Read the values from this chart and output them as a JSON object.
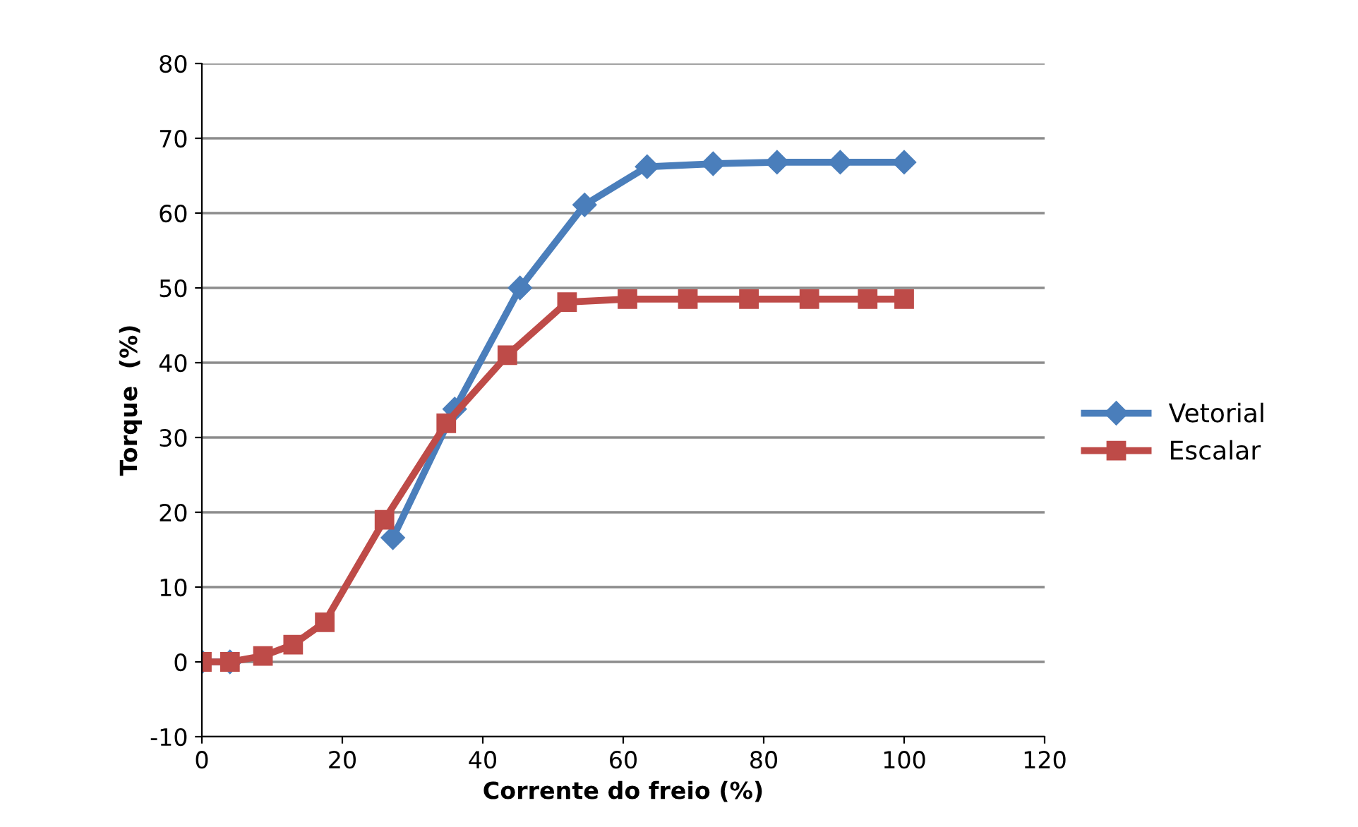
{
  "chart_data": {
    "type": "line",
    "xlabel": "Corrente do freio (%)",
    "ylabel": "Torque  (%)",
    "xlim": [
      0,
      120
    ],
    "xticks": [
      0,
      20,
      40,
      60,
      80,
      100,
      120
    ],
    "ylim": [
      -10,
      80
    ],
    "yticks": [
      -10,
      0,
      10,
      20,
      30,
      40,
      50,
      60,
      70,
      80
    ],
    "grid": "y",
    "legend": "right",
    "series": [
      {
        "name": "Vetorial",
        "color": "#4a7ebb",
        "marker": "diamond",
        "x": [
          0,
          4,
          8.7,
          13,
          17.5,
          27.2,
          36,
          45.3,
          54.5,
          63.4,
          72.8,
          81.9,
          90.9,
          100
        ],
        "values": [
          0,
          0,
          null,
          null,
          null,
          16.6,
          33.8,
          50,
          61.1,
          66.2,
          66.6,
          66.8,
          66.8,
          66.8
        ]
      },
      {
        "name": "Escalar",
        "color": "#be4b48",
        "marker": "square",
        "x": [
          0,
          4,
          8.7,
          13,
          17.5,
          26,
          34.8,
          43.5,
          52,
          60.6,
          69.2,
          77.9,
          86.5,
          94.8,
          100
        ],
        "values": [
          0,
          0,
          0.8,
          2.3,
          5.3,
          19,
          31.9,
          41,
          48.1,
          48.5,
          48.5,
          48.5,
          48.5,
          48.5,
          48.5
        ]
      }
    ]
  }
}
